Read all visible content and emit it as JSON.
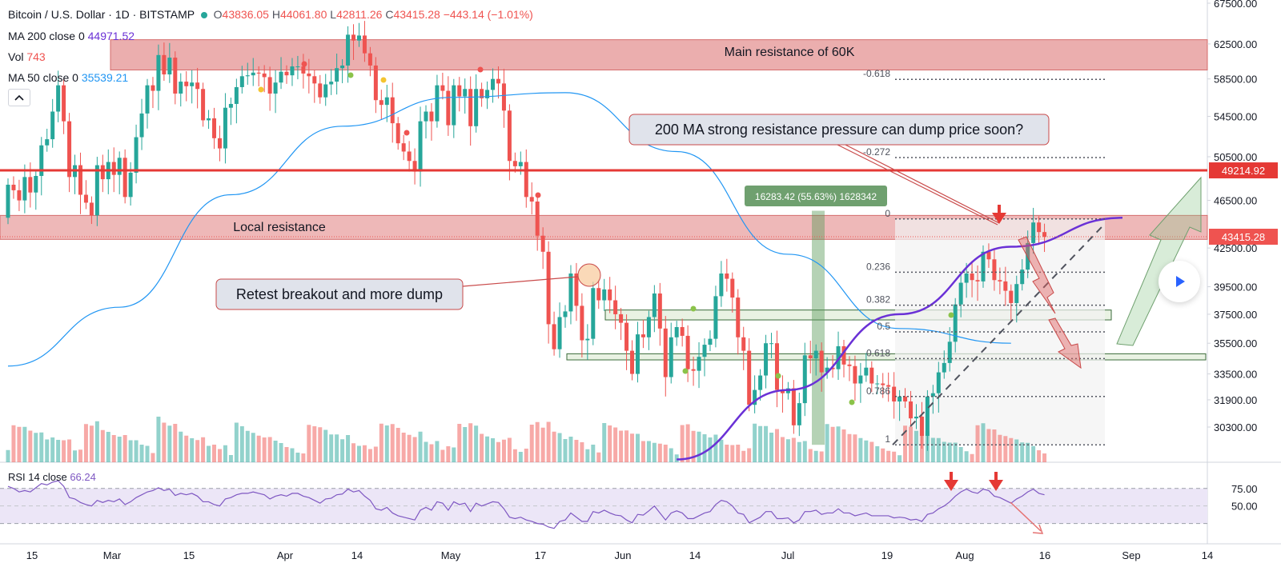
{
  "header": {
    "symbol_title": "Bitcoin / U.S. Dollar · 1D · BITSTAMP",
    "ohlc": {
      "o_label": "O",
      "o": "43836.05",
      "h_label": "H",
      "h": "44061.80",
      "l_label": "L",
      "l": "42811.26",
      "c_label": "C",
      "c": "43415.28",
      "change": "−443.14 (−1.01%)"
    },
    "ma200": {
      "label": "MA 200 close 0",
      "value": "44971.52"
    },
    "vol": {
      "label": "Vol",
      "value": "743"
    },
    "ma50": {
      "label": "MA 50 close 0",
      "value": "35539.21"
    },
    "collapse_icon": "chevron-up-icon"
  },
  "colors": {
    "up": "#26a69a",
    "down": "#ef5350",
    "ma200": "#6a31d6",
    "ma50": "#2196f3",
    "resistance_zone": "#e8a0a0",
    "support_zone": "#e3efdc",
    "rsi_band": "#ece6f7"
  },
  "annotations": {
    "main_resistance": "Main resistance of 60K",
    "local_resistance": "Local resistance",
    "ma_callout": "200 MA strong resistance pressure can dump price soon?",
    "retest_callout": "Retest breakout and more dump",
    "measure_label": "16283.42 (55.63%) 1628342"
  },
  "fib_levels": [
    "-0.618",
    "-0.272",
    "0",
    "0.236",
    "0.382",
    "0.5",
    "0.618",
    "0.786",
    "1"
  ],
  "price_badges": {
    "resistance": "49214.92",
    "last": "43415.28"
  },
  "rsi": {
    "label": "RSI 14 close",
    "value": "66.24"
  },
  "chart_data": {
    "type": "candlestick",
    "title": "Bitcoin / U.S. Dollar · 1D · BITSTAMP",
    "price_axis": {
      "ticks": [
        "67500.00",
        "62500.00",
        "58500.00",
        "54500.00",
        "50500.00",
        "46500.00",
        "42500.00",
        "39500.00",
        "37500.00",
        "35500.00",
        "33500.00",
        "31900.00",
        "30300.00"
      ],
      "scale": "log"
    },
    "rsi_axis": {
      "ticks": [
        "75.00",
        "50.00"
      ]
    },
    "time_axis": {
      "ticks": [
        "15",
        "Mar",
        "15",
        "Apr",
        "14",
        "May",
        "17",
        "Jun",
        "14",
        "Jul",
        "19",
        "Aug",
        "16",
        "Sep",
        "14"
      ]
    },
    "resistance_line": 49214.92,
    "zones": {
      "main_resistance": [
        59500,
        63000
      ],
      "local_resistance": [
        43200,
        45200
      ],
      "support_upper": [
        37100,
        37800
      ],
      "support_lower": [
        34400,
        34800
      ]
    },
    "fibonacci": {
      "from": 29300,
      "to": 44900
    },
    "measure": {
      "from": 29300,
      "to": 45600,
      "text": "16283.42 (55.63%) 1628342"
    },
    "candles": {
      "start": "2021-02-11",
      "open": [
        45000,
        47900,
        47400,
        46500,
        48600,
        47200,
        48700,
        51600,
        52200,
        55000,
        57800,
        54000,
        48600,
        49700,
        47000,
        46300,
        45200,
        49700,
        48400,
        50000,
        48800,
        50400,
        46800,
        49000,
        52400,
        54800,
        57800,
        57200,
        61200,
        59000,
        60900,
        56900,
        58200,
        57700,
        58100,
        57400,
        54100,
        54300,
        52300,
        51300,
        55400,
        55800,
        57600,
        58800,
        58900,
        59200,
        59100,
        58700,
        56900,
        58100,
        59300,
        58900,
        59900,
        59900,
        59100,
        58800,
        58000,
        56500,
        57900,
        58200,
        59700,
        60000,
        63600,
        62900,
        63500,
        61400,
        60000,
        56200,
        55700,
        56500,
        53800,
        51800,
        51000,
        50100,
        49100,
        54000,
        55000,
        54000,
        57800,
        57200,
        53600,
        57800,
        56600,
        57400,
        53500,
        57400,
        56400,
        57300,
        58500,
        58000,
        55100,
        50100,
        49600,
        50000,
        46800,
        46400,
        43500,
        42200,
        36800,
        35100,
        37300,
        37700,
        40500,
        38100,
        35700,
        35800,
        39400,
        38500,
        39300,
        38500,
        37500,
        36900,
        35000,
        33500,
        36100,
        35900,
        37300,
        39000,
        36500,
        33300,
        35900,
        36600,
        36000,
        33800,
        33700,
        34600,
        35400,
        35800,
        38800,
        40500,
        40100,
        38700,
        35900,
        35000,
        31600,
        32500,
        33400,
        35500,
        35500,
        32500,
        32300,
        32600,
        30400,
        31700,
        34700,
        34500,
        35000,
        33600,
        33900,
        33800,
        35300,
        34100,
        34000,
        32900,
        33400,
        33900,
        32900,
        32900,
        32800,
        32700,
        31800,
        32100,
        31800,
        30800,
        30900,
        29800,
        32100,
        32300,
        33600,
        34200,
        35600,
        38200,
        39800,
        40500,
        40000,
        39900,
        42200,
        41600,
        40000,
        39900,
        39200,
        38300,
        39700,
        40800,
        42900,
        44600,
        43800
      ],
      "close": [
        47900,
        47400,
        46500,
        48600,
        47200,
        48700,
        51600,
        52200,
        55000,
        57800,
        54000,
        48600,
        49700,
        47000,
        46300,
        45200,
        49700,
        48400,
        50000,
        48800,
        50400,
        46800,
        49000,
        52400,
        54800,
        57800,
        57200,
        61200,
        59000,
        60900,
        56900,
        58200,
        57700,
        58100,
        57400,
        54100,
        54300,
        52300,
        51300,
        55400,
        55800,
        57600,
        58800,
        58900,
        59200,
        59100,
        58700,
        56900,
        58100,
        59300,
        58900,
        59900,
        59900,
        59100,
        58800,
        58000,
        56500,
        57900,
        58200,
        59700,
        60000,
        63600,
        62900,
        63500,
        61400,
        60000,
        56200,
        55700,
        56500,
        53800,
        51800,
        51000,
        50100,
        49100,
        54000,
        55000,
        54000,
        57800,
        57200,
        53600,
        57800,
        56600,
        57400,
        53500,
        57400,
        56400,
        57300,
        58500,
        58000,
        55100,
        50100,
        49600,
        50000,
        46800,
        46400,
        43500,
        42200,
        36800,
        35100,
        37300,
        37700,
        40500,
        38100,
        35700,
        35800,
        39400,
        38500,
        39300,
        38500,
        37500,
        36900,
        35000,
        33500,
        36100,
        35900,
        37300,
        39000,
        36500,
        33300,
        35900,
        36600,
        36000,
        33800,
        33700,
        34600,
        35400,
        35800,
        38800,
        40500,
        40100,
        38700,
        35900,
        35000,
        31600,
        32500,
        33400,
        35500,
        35500,
        32500,
        32300,
        32600,
        30400,
        31700,
        34700,
        34500,
        35000,
        33600,
        33900,
        33800,
        35300,
        34100,
        34000,
        32900,
        33400,
        33900,
        32900,
        32900,
        32800,
        32700,
        31800,
        32100,
        31800,
        30800,
        30900,
        29800,
        32100,
        32300,
        33600,
        34200,
        35600,
        38200,
        39800,
        40500,
        40000,
        39900,
        42200,
        41600,
        40000,
        39900,
        39200,
        38300,
        39700,
        40800,
        42900,
        44600,
        43800,
        43400
      ]
    },
    "ma200": {
      "x_days": [
        120,
        140,
        160,
        180,
        200
      ],
      "values": [
        28500,
        32500,
        37500,
        42600,
        45000
      ]
    },
    "ma50": {
      "x_days": [
        0,
        20,
        40,
        60,
        80,
        100,
        120,
        140,
        160,
        180
      ],
      "values": [
        34000,
        38000,
        47000,
        53500,
        56500,
        57000,
        51000,
        42000,
        36500,
        35500
      ]
    },
    "rsi_values": [
      78,
      75,
      70,
      72,
      70,
      76,
      82,
      80,
      84,
      86,
      78,
      62,
      60,
      55,
      52,
      50,
      58,
      55,
      58,
      56,
      60,
      52,
      56,
      62,
      66,
      70,
      72,
      76,
      72,
      74,
      65,
      68,
      66,
      68,
      64,
      56,
      56,
      52,
      50,
      60,
      62,
      66,
      68,
      68,
      70,
      68,
      66,
      60,
      64,
      66,
      64,
      68,
      68,
      64,
      62,
      58,
      54,
      60,
      61,
      66,
      67,
      74,
      70,
      72,
      64,
      58,
      46,
      44,
      48,
      40,
      36,
      34,
      32,
      30,
      44,
      48,
      44,
      56,
      54,
      44,
      56,
      52,
      54,
      42,
      54,
      50,
      53,
      56,
      55,
      46,
      34,
      32,
      34,
      30,
      28,
      25,
      24,
      20,
      18,
      28,
      30,
      40,
      34,
      28,
      28,
      42,
      40,
      44,
      40,
      37,
      36,
      30,
      26,
      38,
      37,
      43,
      50,
      40,
      30,
      40,
      43,
      40,
      32,
      32,
      36,
      40,
      42,
      52,
      58,
      56,
      50,
      40,
      38,
      26,
      30,
      34,
      42,
      42,
      32,
      32,
      33,
      26,
      30,
      42,
      42,
      44,
      38,
      40,
      40,
      46,
      40,
      40,
      36,
      38,
      40,
      36,
      36,
      36,
      36,
      33,
      34,
      33,
      30,
      31,
      28,
      38,
      40,
      46,
      50,
      56,
      64,
      70,
      74,
      70,
      68,
      74,
      72,
      64,
      62,
      58,
      54,
      60,
      64,
      70,
      74,
      68,
      66
    ]
  }
}
